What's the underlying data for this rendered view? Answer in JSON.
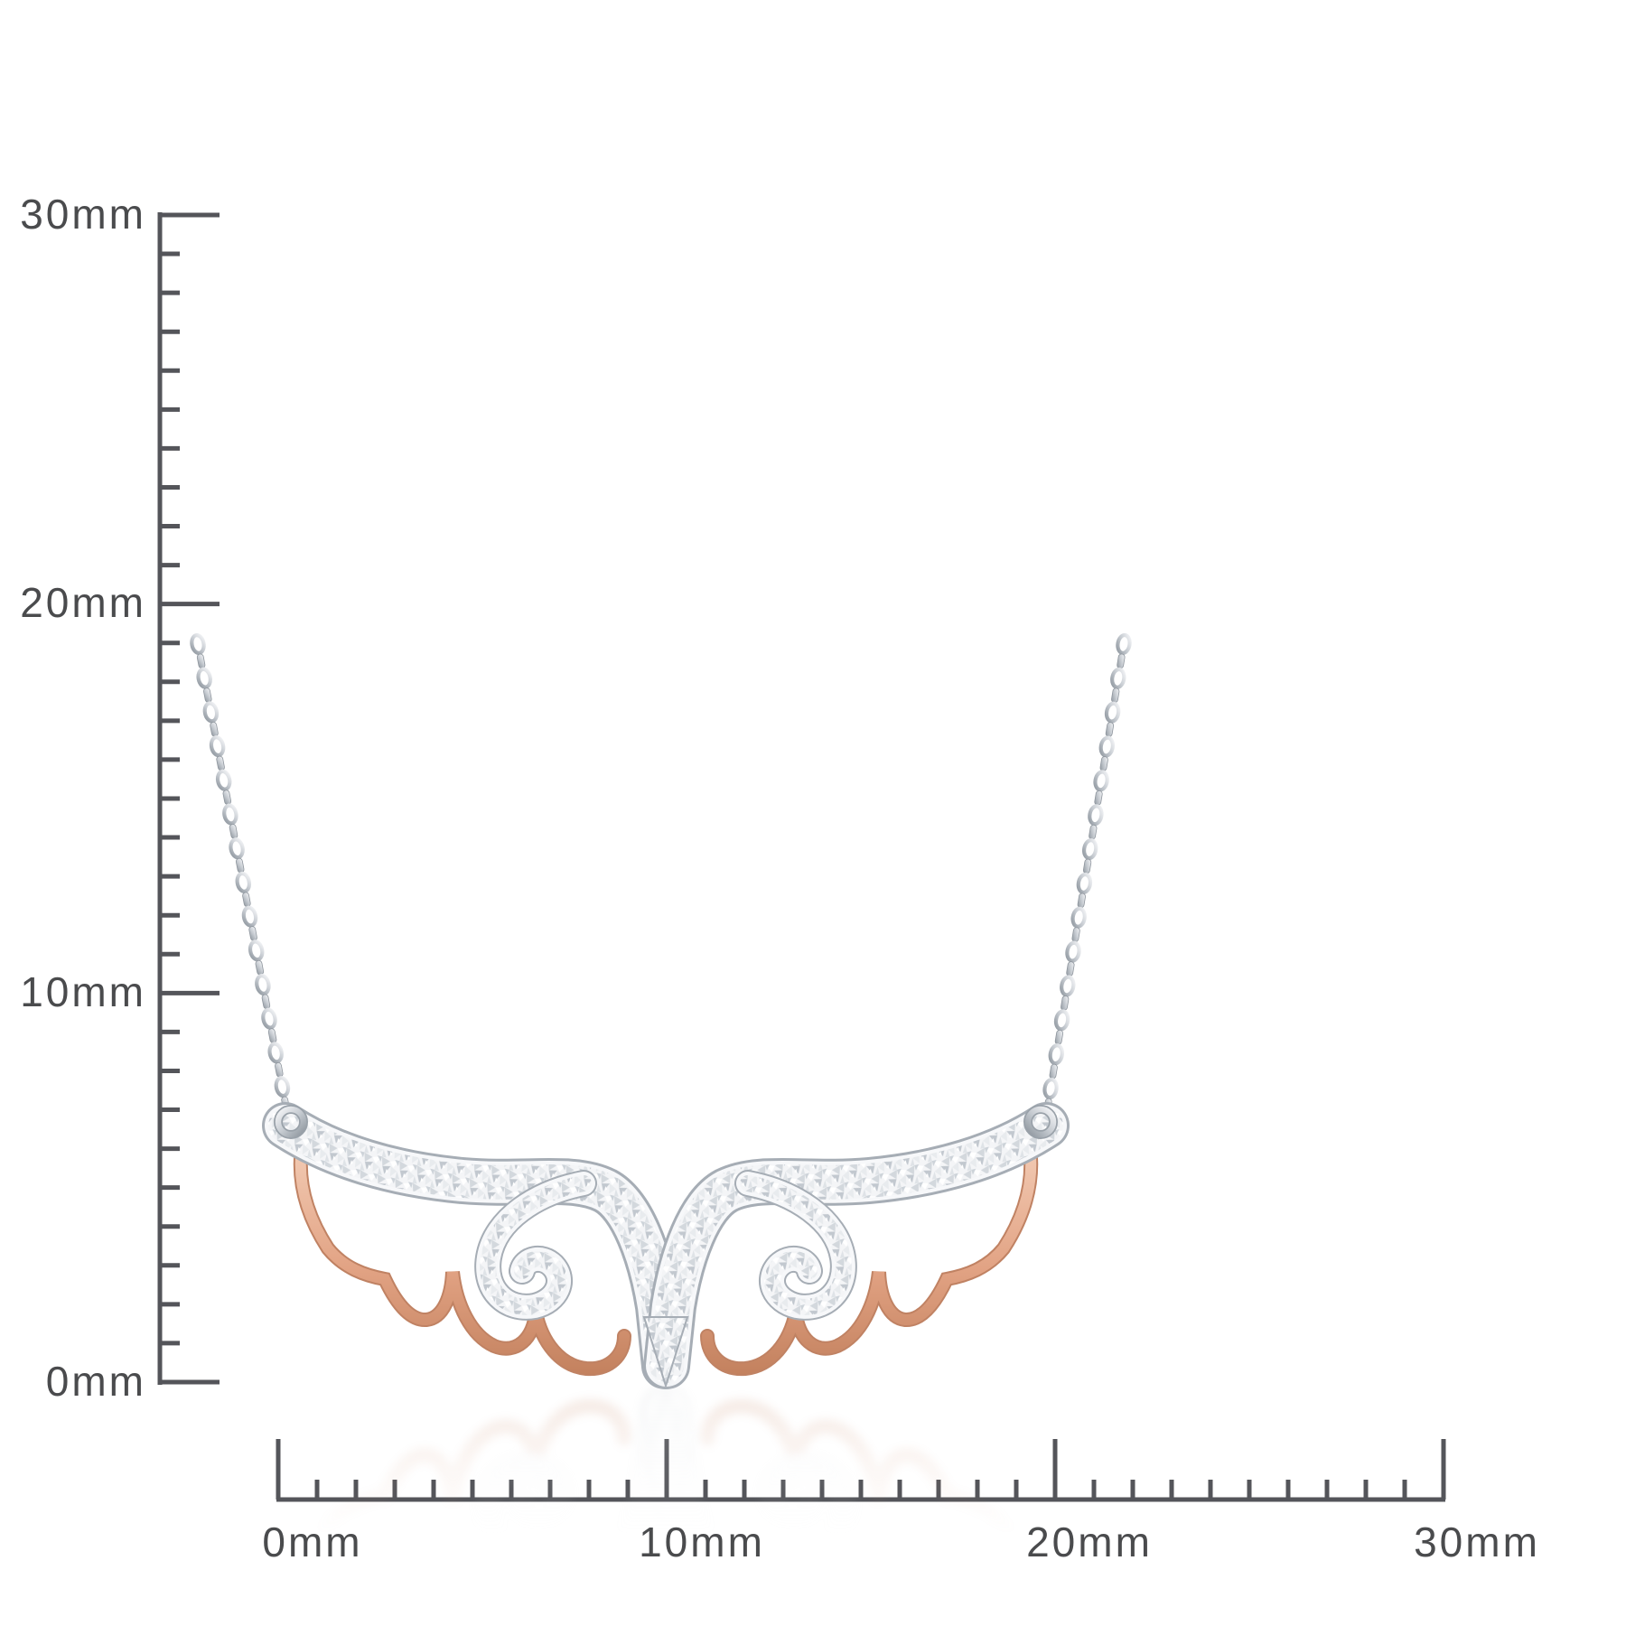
{
  "rulers": {
    "vertical": {
      "unit": "mm",
      "min": 0,
      "max": 30,
      "minor_step_mm": 1,
      "major_step_mm": 10,
      "labels": [
        "30mm",
        "20mm",
        "10mm",
        "0mm"
      ]
    },
    "horizontal": {
      "unit": "mm",
      "min": 0,
      "max": 30,
      "minor_step_mm": 1,
      "major_step_mm": 10,
      "labels": [
        "0mm",
        "10mm",
        "20mm",
        "30mm"
      ]
    }
  },
  "necklace": {
    "name": "angel-wings-pendant-necklace",
    "chain_style": "cable-chain",
    "pendant_style": "double-angel-wings-with-curl",
    "materials": [
      "white-gold-diamond-cut",
      "rose-gold"
    ]
  },
  "colors": {
    "background": "#ffffff",
    "ruler": "#54555a",
    "label_text": "#4a4b4d",
    "silver_light": "#f5f6f8",
    "silver_mid": "#c6cbd1",
    "silver_dark": "#8f979f",
    "rose_gold_light": "#f4cfb9",
    "rose_gold_mid": "#e2a384",
    "rose_gold_dark": "#c2805d"
  }
}
